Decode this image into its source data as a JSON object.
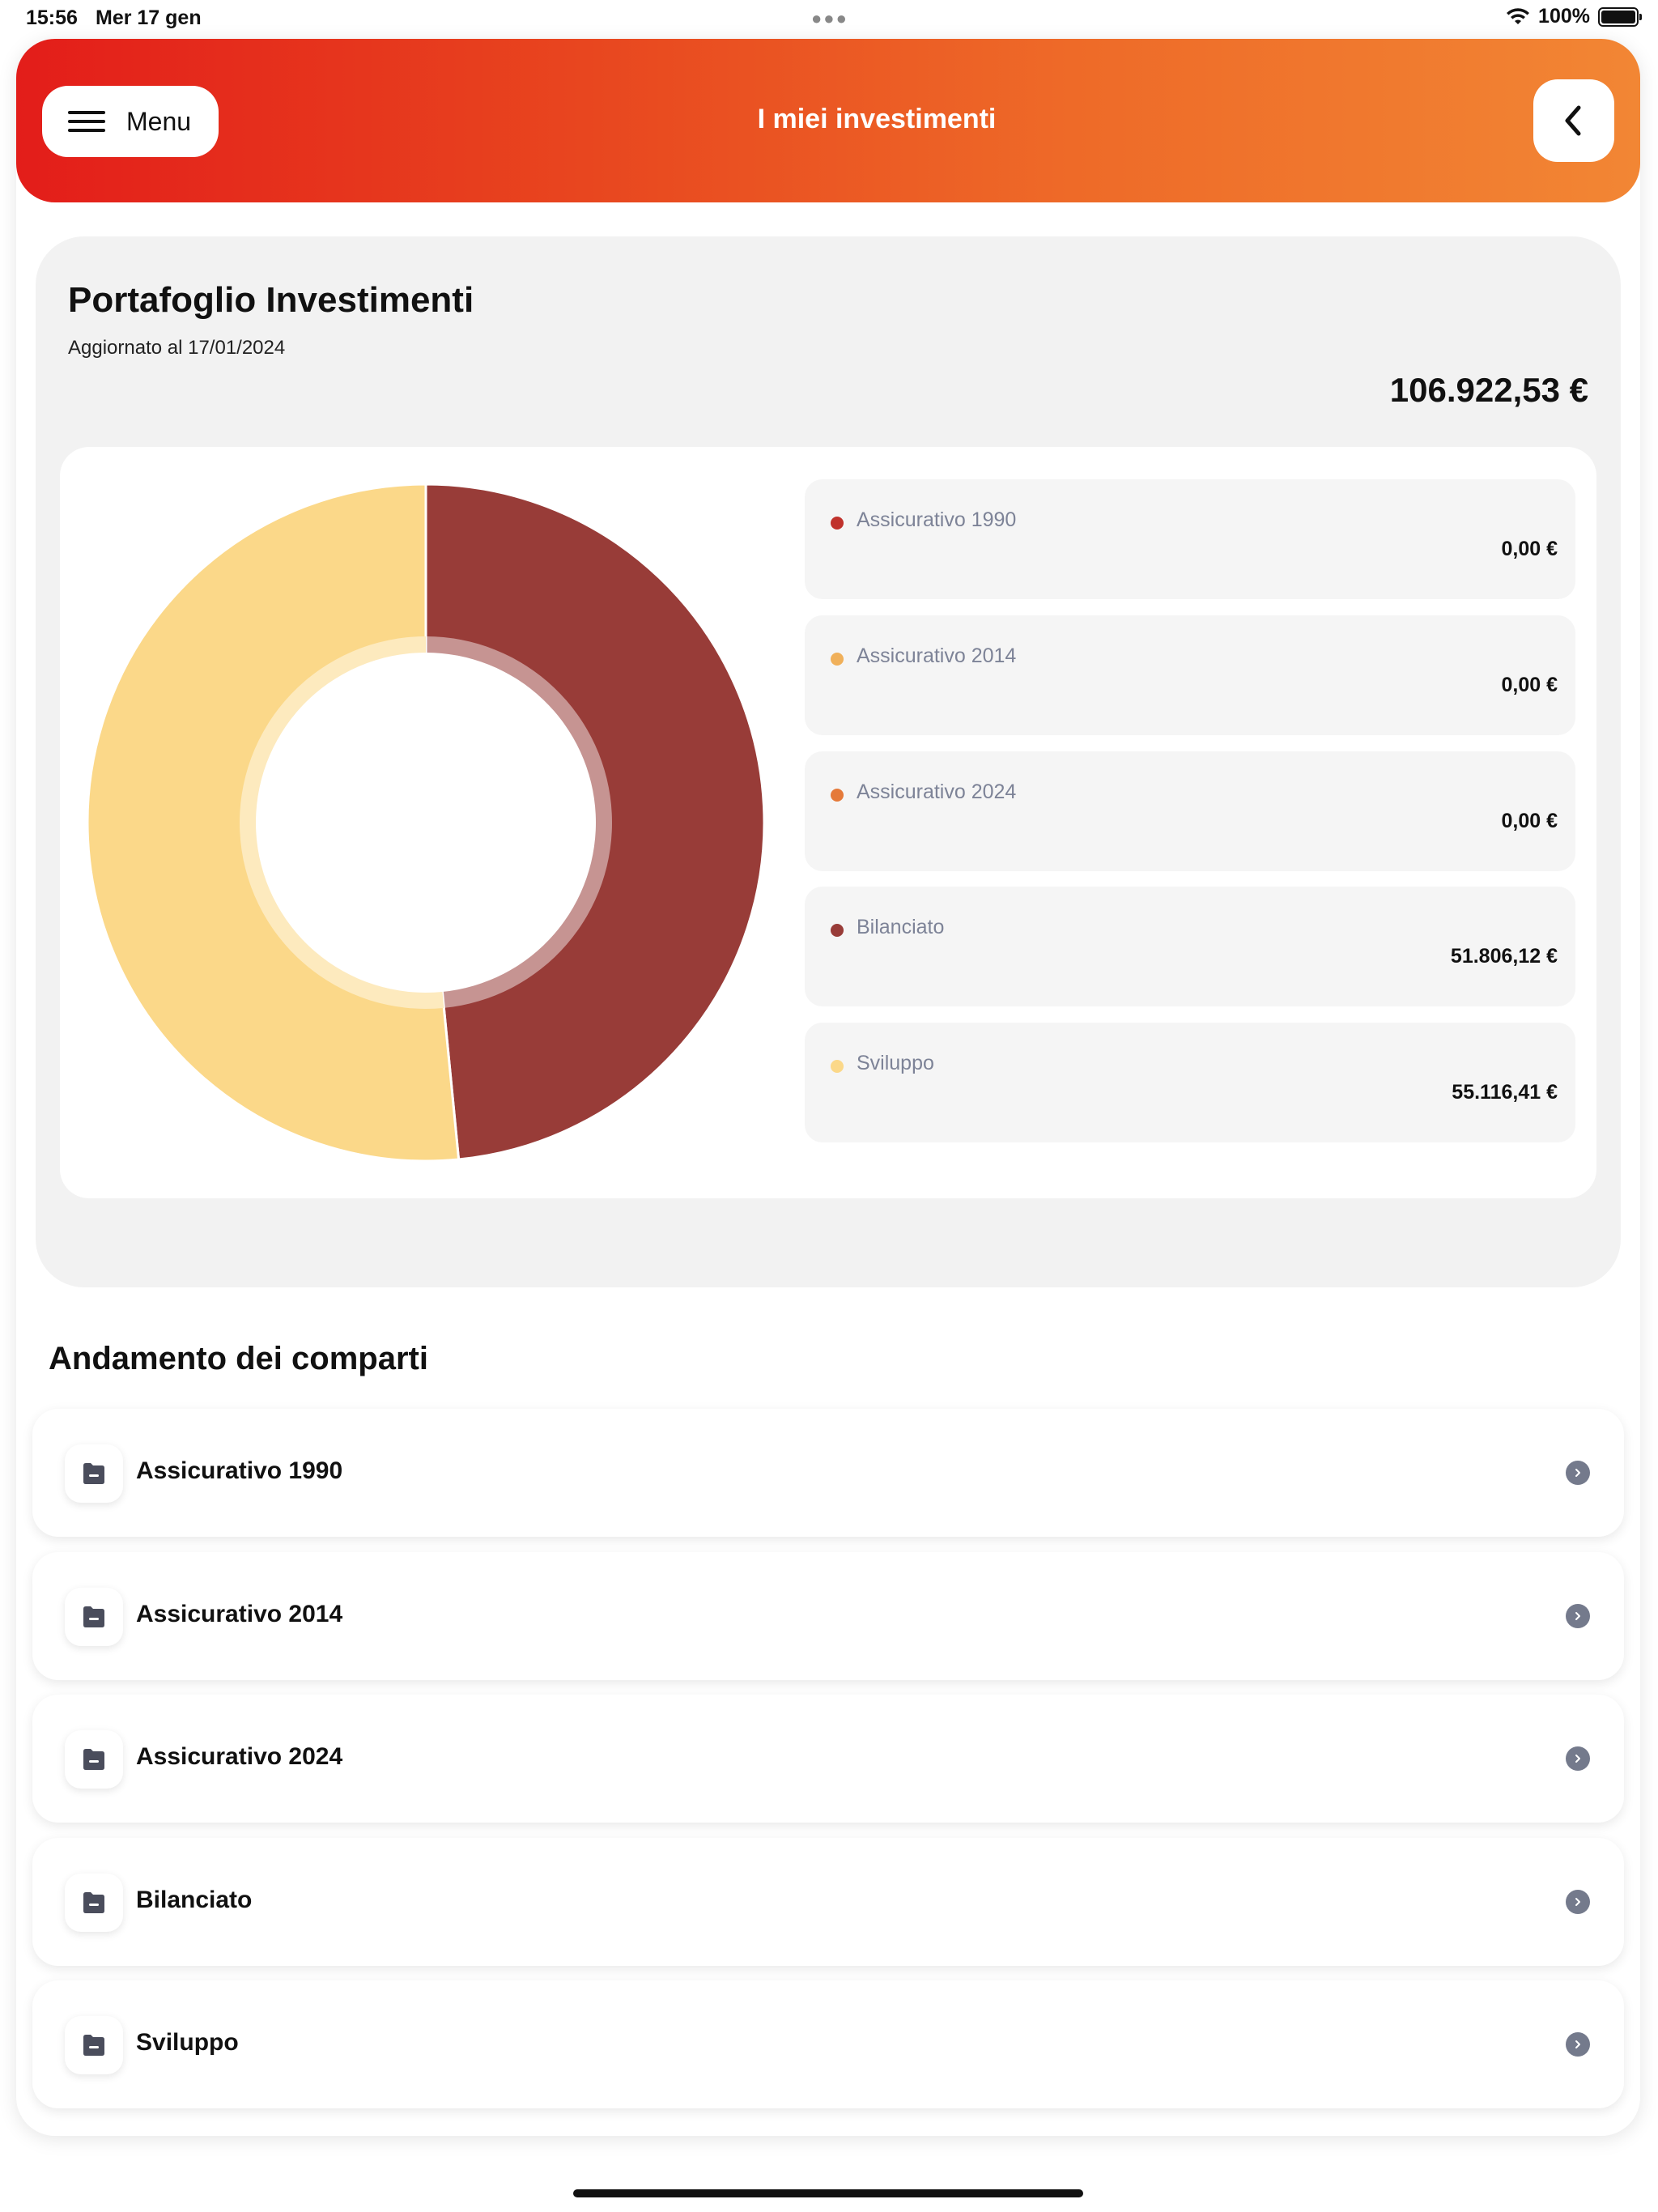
{
  "status_bar": {
    "time": "15:56",
    "date": "Mer 17 gen",
    "battery": "100%"
  },
  "header": {
    "menu_label": "Menu",
    "title": "I miei investimenti"
  },
  "portfolio": {
    "title": "Portafoglio Investimenti",
    "updated": "Aggiornato al 17/01/2024",
    "total": "106.922,53 €"
  },
  "chart_data": {
    "type": "pie",
    "categories": [
      "Assicurativo 1990",
      "Assicurativo 2014",
      "Assicurativo 2024",
      "Bilanciato",
      "Sviluppo"
    ],
    "values": [
      0.0,
      0.0,
      0.0,
      51806.12,
      55116.41
    ],
    "colors": [
      "#c0322c",
      "#f0b05a",
      "#e57a3a",
      "#983c38",
      "#fbd889"
    ],
    "legend_position": "right"
  },
  "legend": [
    {
      "label": "Assicurativo 1990",
      "value": "0,00 €",
      "color": "#c0322c"
    },
    {
      "label": "Assicurativo 2014",
      "value": "0,00 €",
      "color": "#f0b05a"
    },
    {
      "label": "Assicurativo 2024",
      "value": "0,00 €",
      "color": "#e57a3a"
    },
    {
      "label": "Bilanciato",
      "value": "51.806,12 €",
      "color": "#983c38"
    },
    {
      "label": "Sviluppo",
      "value": "55.116,41 €",
      "color": "#fbd889"
    }
  ],
  "section": {
    "title": "Andamento dei comparti"
  },
  "funds": [
    {
      "label": "Assicurativo 1990",
      "icon": "folder-icon"
    },
    {
      "label": "Assicurativo 2014",
      "icon": "folder-icon"
    },
    {
      "label": "Assicurativo 2024",
      "icon": "folder-icon"
    },
    {
      "label": "Bilanciato",
      "icon": "folder-icon"
    },
    {
      "label": "Sviluppo",
      "icon": "folder-icon"
    }
  ]
}
